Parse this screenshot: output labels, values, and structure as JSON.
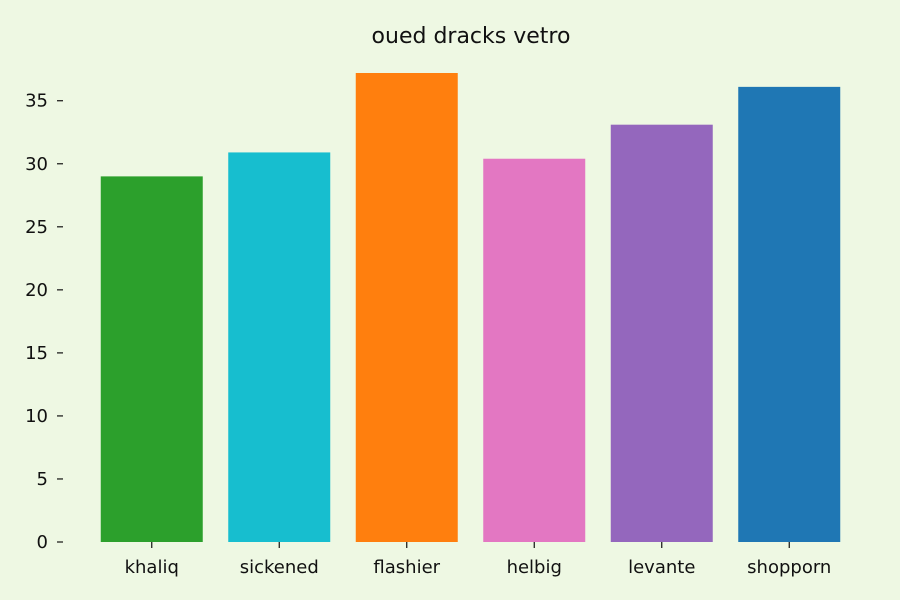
{
  "chart_data": {
    "type": "bar",
    "title": "oued dracks vetro",
    "xlabel": "",
    "ylabel": "",
    "categories": [
      "khaliq",
      "sickened",
      "flashier",
      "helbig",
      "levante",
      "shopporn"
    ],
    "values": [
      29.0,
      30.9,
      37.2,
      30.4,
      33.1,
      36.1
    ],
    "colors": [
      "#2ca02c",
      "#17becf",
      "#ff7f0e",
      "#e377c2",
      "#9467bd",
      "#1f77b4"
    ],
    "ylim": [
      0,
      37.2
    ],
    "yticks": [
      0,
      5,
      10,
      15,
      20,
      25,
      30,
      35
    ],
    "grid": false,
    "legend": "none",
    "background": "#eef8e3"
  }
}
